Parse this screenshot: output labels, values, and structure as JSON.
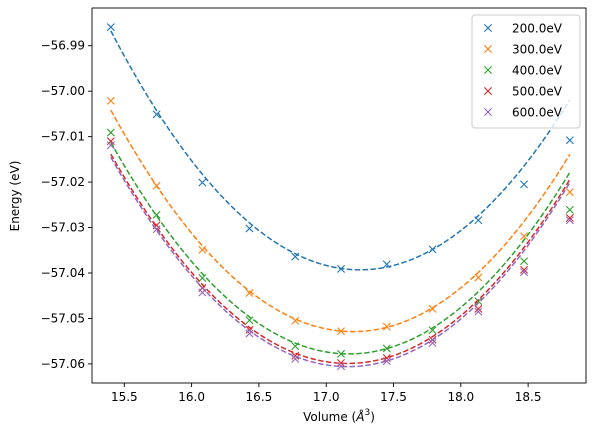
{
  "chart_data": {
    "type": "line",
    "xlabel": "Volume (",
    "xlabel_unit_base": "Å",
    "xlabel_unit_exp": "3",
    "xlabel_close": ")",
    "ylabel": "Energy (eV)",
    "xlim": [
      15.26,
      18.93
    ],
    "ylim": [
      -57.0642,
      -56.9817
    ],
    "xticks": [
      15.5,
      16.0,
      16.5,
      17.0,
      17.5,
      18.0,
      18.5
    ],
    "xtick_labels": [
      "15.5",
      "16.0",
      "16.5",
      "17.0",
      "17.5",
      "18.0",
      "18.5"
    ],
    "yticks": [
      -56.99,
      -57.0,
      -57.01,
      -57.02,
      -57.03,
      -57.04,
      -57.05,
      -57.06
    ],
    "ytick_labels": [
      "−56.99",
      "−57.00",
      "−57.01",
      "−57.02",
      "−57.03",
      "−57.04",
      "−57.05",
      "−57.06"
    ],
    "grid": false,
    "legend_position": "top-right",
    "marker": "x",
    "fit_style": "dashed",
    "x": [
      15.4,
      15.74,
      16.08,
      16.43,
      16.77,
      17.11,
      17.45,
      17.79,
      18.13,
      18.47,
      18.81
    ],
    "series": [
      {
        "name": "200.0eV",
        "color": "#1f77b4",
        "values": [
          -56.9859,
          -57.0051,
          -57.0201,
          -57.0302,
          -57.0364,
          -57.0391,
          -57.0381,
          -57.0348,
          -57.0284,
          -57.0205,
          -57.0108
        ],
        "fit": {
          "a": 0.01536,
          "b": 17.25,
          "c": -57.0393
        }
      },
      {
        "name": "300.0eV",
        "color": "#ff7f0e",
        "values": [
          -57.0021,
          -57.0208,
          -57.0349,
          -57.0444,
          -57.0505,
          -57.0528,
          -57.0518,
          -57.0479,
          -57.041,
          -57.0319,
          -57.0222
        ],
        "fit": {
          "a": 0.01504,
          "b": 17.2,
          "c": -57.0529
        }
      },
      {
        "name": "400.0eV",
        "color": "#2ca02c",
        "values": [
          -57.0091,
          -57.0272,
          -57.0411,
          -57.0504,
          -57.0561,
          -57.0578,
          -57.0566,
          -57.0526,
          -57.0462,
          -57.0374,
          -57.0261
        ],
        "fit": {
          "a": 0.01485,
          "b": 17.17,
          "c": -57.0578
        }
      },
      {
        "name": "500.0eV",
        "color": "#d62728",
        "values": [
          -57.011,
          -57.0295,
          -57.0433,
          -57.0525,
          -57.0582,
          -57.0598,
          -57.0587,
          -57.0547,
          -57.0479,
          -57.0393,
          -57.0279
        ],
        "fit": {
          "a": 0.01487,
          "b": 17.16,
          "c": -57.0599
        }
      },
      {
        "name": "600.0eV",
        "color": "#9467bd",
        "values": [
          -57.0119,
          -57.0304,
          -57.0443,
          -57.0533,
          -57.0589,
          -57.0605,
          -57.0594,
          -57.0554,
          -57.0485,
          -57.0398,
          -57.0284
        ],
        "fit": {
          "a": 0.01487,
          "b": 17.16,
          "c": -57.0606
        }
      }
    ]
  }
}
